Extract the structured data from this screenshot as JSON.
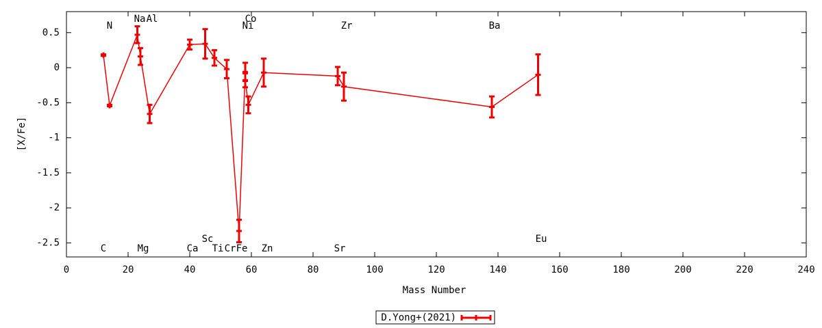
{
  "chart_data": {
    "type": "errorline",
    "xlabel": "Mass Number",
    "ylabel": "[X/Fe]",
    "xlim": [
      0,
      240
    ],
    "ylim": [
      -2.7,
      0.8
    ],
    "xticks": [
      0,
      20,
      40,
      60,
      80,
      100,
      120,
      140,
      160,
      180,
      200,
      220,
      240
    ],
    "yticks": [
      0.5,
      0,
      -0.5,
      -1,
      -1.5,
      -2,
      -2.5
    ],
    "legend": "bottom-center",
    "series": [
      {
        "name": "D.Yong+(2021)",
        "color": "#ee0000",
        "x": [
          12,
          14,
          23,
          24,
          27,
          40,
          45,
          48,
          52,
          56,
          58,
          58,
          59,
          64,
          88,
          90,
          138,
          153
        ],
        "values": [
          0.18,
          -0.54,
          0.47,
          0.16,
          -0.66,
          0.33,
          0.34,
          0.14,
          -0.02,
          -2.33,
          -0.06,
          -0.18,
          -0.53,
          -0.07,
          -0.12,
          -0.27,
          -0.56,
          -0.1
        ],
        "errors": [
          0.01,
          0.01,
          0.12,
          0.12,
          0.13,
          0.07,
          0.21,
          0.11,
          0.13,
          0.16,
          0.13,
          0.1,
          0.12,
          0.2,
          0.13,
          0.2,
          0.15,
          0.29
        ]
      }
    ],
    "labels": [
      "N",
      "Na",
      "Al",
      "Co",
      "Ni",
      "Zr",
      "Ba",
      "C",
      "Mg",
      "Ca",
      "Sc",
      "Ti",
      "Cr",
      "Fe",
      "Zn",
      "Sr",
      "Eu"
    ]
  }
}
